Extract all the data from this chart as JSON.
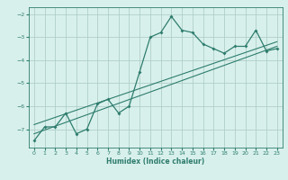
{
  "x": [
    0,
    1,
    2,
    3,
    4,
    5,
    6,
    7,
    8,
    9,
    10,
    11,
    12,
    13,
    14,
    15,
    16,
    17,
    18,
    19,
    20,
    21,
    22,
    23
  ],
  "y": [
    -7.5,
    -6.9,
    -6.9,
    -6.3,
    -7.2,
    -7.0,
    -5.9,
    -5.7,
    -6.3,
    -6.0,
    -4.5,
    -3.0,
    -2.8,
    -2.1,
    -2.7,
    -2.8,
    -3.3,
    -3.5,
    -3.7,
    -3.4,
    -3.4,
    -2.7,
    -3.6,
    -3.5
  ],
  "trend_x": [
    0,
    23
  ],
  "trend_y": [
    -7.2,
    -3.4
  ],
  "trend2_x": [
    0,
    23
  ],
  "trend2_y": [
    -6.8,
    -3.2
  ],
  "line_color": "#2e7d6e",
  "bg_color": "#d8f0ec",
  "grid_color": "#b0cfc8",
  "xlabel": "Humidex (Indice chaleur)",
  "ylabel": "",
  "xlim": [
    -0.5,
    23.5
  ],
  "ylim": [
    -7.8,
    -1.7
  ],
  "yticks": [
    -7,
    -6,
    -5,
    -4,
    -3,
    -2
  ],
  "xticks": [
    0,
    1,
    2,
    3,
    4,
    5,
    6,
    7,
    8,
    9,
    10,
    11,
    12,
    13,
    14,
    15,
    16,
    17,
    18,
    19,
    20,
    21,
    22,
    23
  ]
}
